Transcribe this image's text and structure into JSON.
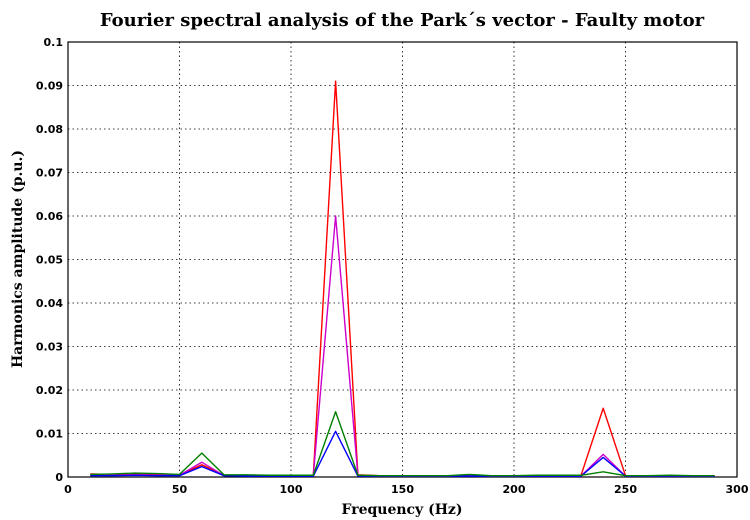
{
  "chart_data": {
    "type": "line",
    "title": "Fourier spectral analysis of the Park´s vector - Faulty motor",
    "xlabel": "Frequency (Hz)",
    "ylabel": "Harmonics amplitude (p.u.)",
    "xlim": [
      0,
      300
    ],
    "ylim": [
      0,
      0.1
    ],
    "xticks": [
      0,
      50,
      100,
      150,
      200,
      250,
      300
    ],
    "yticks": [
      0,
      0.01,
      0.02,
      0.03,
      0.04,
      0.05,
      0.06,
      0.07,
      0.08,
      0.09,
      0.1
    ],
    "xtick_labels": [
      "0",
      "50",
      "100",
      "150",
      "200",
      "250",
      "300"
    ],
    "ytick_labels": [
      "0",
      "0.01",
      "0.02",
      "0.03",
      "0.04",
      "0.05",
      "0.06",
      "0.07",
      "0.08",
      "0.09",
      "0.1"
    ],
    "grid": true,
    "x": [
      10,
      20,
      30,
      40,
      50,
      60,
      70,
      80,
      90,
      100,
      110,
      120,
      130,
      140,
      150,
      160,
      170,
      180,
      190,
      200,
      210,
      220,
      230,
      240,
      250,
      260,
      270,
      280,
      290
    ],
    "series": [
      {
        "color": "#ff0000",
        "values": [
          0.0007,
          0.0006,
          0.0008,
          0.0007,
          0.0004,
          0.0028,
          0.0004,
          0.0003,
          0.0003,
          0.0004,
          0.0003,
          0.091,
          0.0005,
          0.0003,
          0.0003,
          0.0002,
          0.0002,
          0.0004,
          0.0002,
          0.0002,
          0.0003,
          0.0003,
          0.0003,
          0.0158,
          0.0003,
          0.0002,
          0.0002,
          0.0002,
          0.0002
        ]
      },
      {
        "color": "#cc00cc",
        "values": [
          0.0004,
          0.0004,
          0.0005,
          0.0004,
          0.0004,
          0.0034,
          0.0003,
          0.0003,
          0.0003,
          0.0003,
          0.0003,
          0.06,
          0.0003,
          0.0002,
          0.0002,
          0.0002,
          0.0002,
          0.0003,
          0.0002,
          0.0002,
          0.0002,
          0.0002,
          0.0002,
          0.0052,
          0.0002,
          0.0002,
          0.0002,
          0.0002,
          0.0002
        ]
      },
      {
        "color": "#0000ff",
        "values": [
          0.0003,
          0.0003,
          0.0004,
          0.0003,
          0.0003,
          0.0024,
          0.0003,
          0.0002,
          0.0002,
          0.0002,
          0.0002,
          0.0105,
          0.0002,
          0.0002,
          0.0002,
          0.0002,
          0.0002,
          0.0002,
          0.0002,
          0.0002,
          0.0002,
          0.0002,
          0.0002,
          0.0045,
          0.0002,
          0.0002,
          0.0002,
          0.0002,
          0.0002
        ]
      },
      {
        "color": "#008000",
        "values": [
          0.0006,
          0.0007,
          0.0009,
          0.0008,
          0.0006,
          0.0055,
          0.0005,
          0.0005,
          0.0004,
          0.0004,
          0.0004,
          0.015,
          0.0004,
          0.0003,
          0.0003,
          0.0003,
          0.0003,
          0.0006,
          0.0003,
          0.0003,
          0.0004,
          0.0004,
          0.0004,
          0.0012,
          0.0003,
          0.0003,
          0.0004,
          0.0003,
          0.0003
        ]
      }
    ]
  }
}
